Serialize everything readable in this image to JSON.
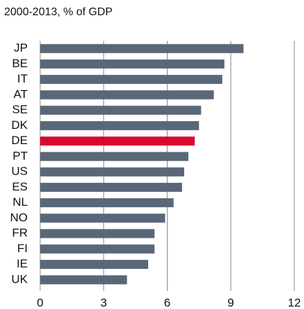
{
  "chart_data": {
    "type": "hbar",
    "title": "2000-2013, % of GDP",
    "categories": [
      "JP",
      "BE",
      "IT",
      "AT",
      "SE",
      "DK",
      "DE",
      "PT",
      "US",
      "ES",
      "NL",
      "NO",
      "FR",
      "FI",
      "IE",
      "UK"
    ],
    "values": [
      9.6,
      8.7,
      8.6,
      8.2,
      7.6,
      7.5,
      7.3,
      7.0,
      6.8,
      6.7,
      6.3,
      5.9,
      5.4,
      5.4,
      5.1,
      4.1
    ],
    "colors": [
      "#596878",
      "#596878",
      "#596878",
      "#596878",
      "#596878",
      "#596878",
      "#d7082e",
      "#596878",
      "#596878",
      "#596878",
      "#596878",
      "#596878",
      "#596878",
      "#596878",
      "#596878",
      "#596878"
    ],
    "xlim": [
      0,
      12
    ],
    "xticks": [
      0,
      3,
      6,
      9,
      12
    ],
    "grid": true
  }
}
